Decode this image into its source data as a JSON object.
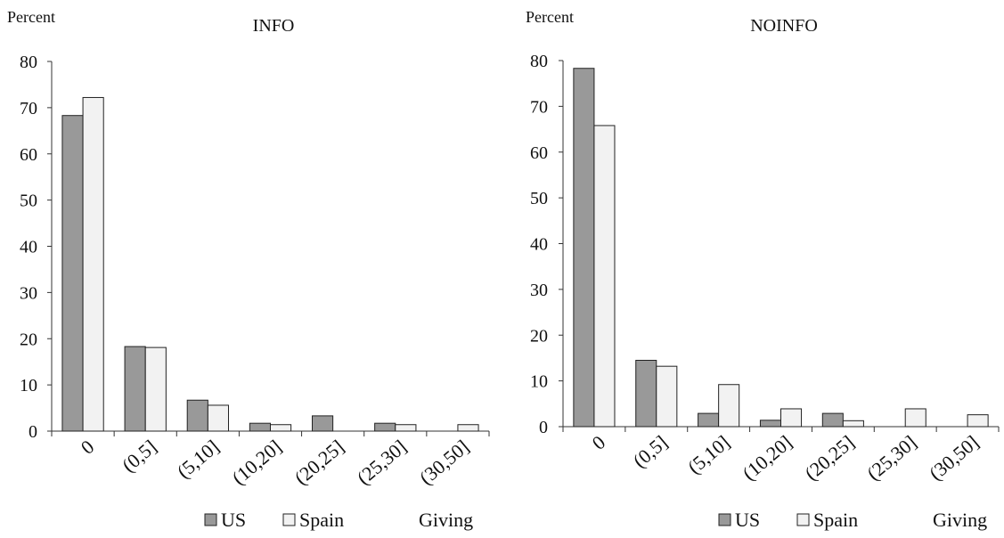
{
  "chart_data": [
    {
      "type": "bar",
      "title": "INFO",
      "ylabel": "Percent",
      "xlabel": "Giving",
      "ylim": [
        0,
        80
      ],
      "yticks": [
        0,
        10,
        20,
        30,
        40,
        50,
        60,
        70,
        80
      ],
      "categories": [
        "0",
        "(0,5]",
        "(5,10]",
        "(10,20]",
        "(20,25]",
        "(25,30]",
        "(30,50]"
      ],
      "series": [
        {
          "name": "US",
          "color": "#999999",
          "values": [
            68.3,
            18.3,
            6.7,
            1.7,
            3.3,
            1.7,
            0
          ]
        },
        {
          "name": "Spain",
          "color": "#f2f2f2",
          "values": [
            72.2,
            18.1,
            5.6,
            1.4,
            0,
            1.4,
            1.4
          ]
        }
      ],
      "legend": "bottom"
    },
    {
      "type": "bar",
      "title": "NOINFO",
      "ylabel": "Percent",
      "xlabel": "Giving",
      "ylim": [
        0,
        80
      ],
      "yticks": [
        0,
        10,
        20,
        30,
        40,
        50,
        60,
        70,
        80
      ],
      "categories": [
        "0",
        "(0,5]",
        "(5,10]",
        "(10,20]",
        "(20,25]",
        "(25,30]",
        "(30,50]"
      ],
      "series": [
        {
          "name": "US",
          "color": "#999999",
          "values": [
            78.3,
            14.5,
            2.9,
            1.4,
            2.9,
            0,
            0
          ]
        },
        {
          "name": "Spain",
          "color": "#f2f2f2",
          "values": [
            65.8,
            13.2,
            9.2,
            3.9,
            1.3,
            3.9,
            2.6
          ]
        }
      ],
      "legend": "bottom"
    }
  ]
}
